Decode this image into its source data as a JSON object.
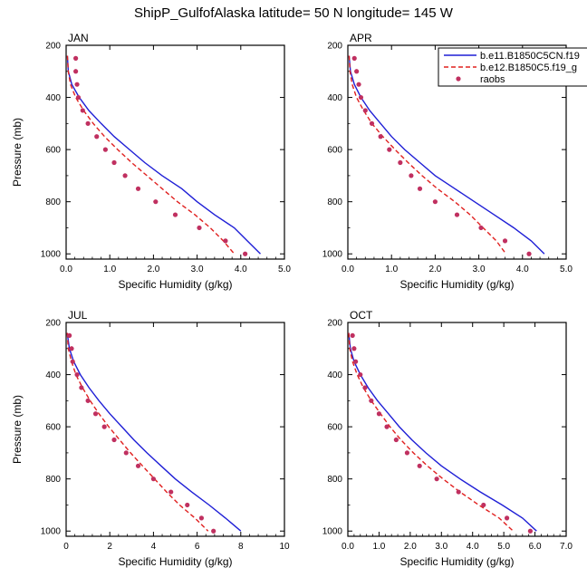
{
  "title": "ShipP_GulfofAlaska  latitude= 50 N longitude= 145 W",
  "legend": {
    "entries": [
      {
        "label": "b.e11.B1850C5CN.f19",
        "color": "#1f1fd6",
        "style": "solid"
      },
      {
        "label": "b.e12.B1850C5.f19_g",
        "color": "#e0201f",
        "style": "dashed"
      },
      {
        "label": "raobs",
        "color": "#c03060",
        "style": "markers"
      }
    ]
  },
  "chart_data": [
    {
      "type": "line",
      "panel_label": "JAN",
      "xlabel": "Specific Humidity (g/kg)",
      "ylabel": "Pressure (mb)",
      "xlim": [
        0,
        5
      ],
      "ylim": [
        200,
        1020
      ],
      "xticks": [
        "0.0",
        "1.0",
        "2.0",
        "3.0",
        "4.0",
        "5.0"
      ],
      "yticks": [
        "200",
        "400",
        "600",
        "800",
        "1000"
      ],
      "series": [
        {
          "name": "b.e11.B1850C5CN.f19",
          "points": [
            [
              0.03,
              240
            ],
            [
              0.05,
              300
            ],
            [
              0.13,
              350
            ],
            [
              0.3,
              400
            ],
            [
              0.52,
              450
            ],
            [
              0.8,
              500
            ],
            [
              1.1,
              550
            ],
            [
              1.45,
              600
            ],
            [
              1.8,
              650
            ],
            [
              2.2,
              700
            ],
            [
              2.65,
              750
            ],
            [
              3.0,
              800
            ],
            [
              3.4,
              850
            ],
            [
              3.85,
              900
            ],
            [
              4.15,
              950
            ],
            [
              4.45,
              1000
            ]
          ]
        },
        {
          "name": "b.e12.B1850C5.f19_g",
          "points": [
            [
              0.03,
              240
            ],
            [
              0.05,
              300
            ],
            [
              0.1,
              350
            ],
            [
              0.22,
              400
            ],
            [
              0.4,
              450
            ],
            [
              0.62,
              500
            ],
            [
              0.88,
              550
            ],
            [
              1.18,
              600
            ],
            [
              1.5,
              650
            ],
            [
              1.85,
              700
            ],
            [
              2.2,
              750
            ],
            [
              2.55,
              800
            ],
            [
              2.95,
              850
            ],
            [
              3.3,
              900
            ],
            [
              3.6,
              950
            ],
            [
              3.85,
              1000
            ]
          ]
        },
        {
          "name": "raobs",
          "points": [
            [
              0.22,
              250
            ],
            [
              0.22,
              300
            ],
            [
              0.25,
              350
            ],
            [
              0.28,
              400
            ],
            [
              0.38,
              450
            ],
            [
              0.5,
              500
            ],
            [
              0.7,
              550
            ],
            [
              0.9,
              600
            ],
            [
              1.1,
              650
            ],
            [
              1.35,
              700
            ],
            [
              1.65,
              750
            ],
            [
              2.05,
              800
            ],
            [
              2.5,
              850
            ],
            [
              3.05,
              900
            ],
            [
              3.65,
              950
            ],
            [
              4.1,
              1000
            ]
          ]
        }
      ]
    },
    {
      "type": "line",
      "panel_label": "APR",
      "xlabel": "Specific Humidity (g/kg)",
      "ylabel": "",
      "xlim": [
        0,
        5
      ],
      "ylim": [
        200,
        1020
      ],
      "xticks": [
        "0.0",
        "1.0",
        "2.0",
        "3.0",
        "4.0",
        "5.0"
      ],
      "yticks": [
        "200",
        "400",
        "600",
        "800",
        "1000"
      ],
      "series": [
        {
          "name": "b.e11.B1850C5CN.f19",
          "points": [
            [
              0.03,
              240
            ],
            [
              0.06,
              300
            ],
            [
              0.15,
              350
            ],
            [
              0.3,
              400
            ],
            [
              0.5,
              450
            ],
            [
              0.75,
              500
            ],
            [
              1.0,
              550
            ],
            [
              1.3,
              600
            ],
            [
              1.65,
              650
            ],
            [
              2.0,
              700
            ],
            [
              2.45,
              750
            ],
            [
              2.9,
              800
            ],
            [
              3.35,
              850
            ],
            [
              3.8,
              900
            ],
            [
              4.2,
              950
            ],
            [
              4.5,
              1000
            ]
          ]
        },
        {
          "name": "b.e12.B1850C5.f19_g",
          "points": [
            [
              0.03,
              240
            ],
            [
              0.05,
              300
            ],
            [
              0.1,
              350
            ],
            [
              0.2,
              400
            ],
            [
              0.36,
              450
            ],
            [
              0.55,
              500
            ],
            [
              0.8,
              550
            ],
            [
              1.08,
              600
            ],
            [
              1.38,
              650
            ],
            [
              1.7,
              700
            ],
            [
              2.05,
              750
            ],
            [
              2.45,
              800
            ],
            [
              2.8,
              850
            ],
            [
              3.1,
              900
            ],
            [
              3.4,
              950
            ],
            [
              3.62,
              1000
            ]
          ]
        },
        {
          "name": "raobs",
          "points": [
            [
              0.15,
              250
            ],
            [
              0.2,
              300
            ],
            [
              0.25,
              350
            ],
            [
              0.3,
              400
            ],
            [
              0.4,
              450
            ],
            [
              0.55,
              500
            ],
            [
              0.75,
              550
            ],
            [
              0.95,
              600
            ],
            [
              1.2,
              650
            ],
            [
              1.45,
              700
            ],
            [
              1.65,
              750
            ],
            [
              2.0,
              800
            ],
            [
              2.5,
              850
            ],
            [
              3.05,
              900
            ],
            [
              3.6,
              950
            ],
            [
              4.15,
              1000
            ]
          ]
        }
      ]
    },
    {
      "type": "line",
      "panel_label": "JUL",
      "xlabel": "Specific Humidity (g/kg)",
      "ylabel": "Pressure (mb)",
      "xlim": [
        0,
        10
      ],
      "ylim": [
        200,
        1020
      ],
      "xticks": [
        "0",
        "2",
        "4",
        "6",
        "8",
        "10"
      ],
      "yticks": [
        "200",
        "400",
        "600",
        "800",
        "1000"
      ],
      "series": [
        {
          "name": "b.e11.B1850C5CN.f19",
          "points": [
            [
              0.05,
              240
            ],
            [
              0.15,
              300
            ],
            [
              0.35,
              350
            ],
            [
              0.65,
              400
            ],
            [
              1.05,
              450
            ],
            [
              1.5,
              500
            ],
            [
              2.0,
              550
            ],
            [
              2.55,
              600
            ],
            [
              3.1,
              650
            ],
            [
              3.7,
              700
            ],
            [
              4.35,
              750
            ],
            [
              5.0,
              800
            ],
            [
              5.75,
              850
            ],
            [
              6.55,
              900
            ],
            [
              7.3,
              950
            ],
            [
              8.0,
              1000
            ]
          ]
        },
        {
          "name": "b.e12.B1850C5.f19_g",
          "points": [
            [
              0.05,
              240
            ],
            [
              0.1,
              300
            ],
            [
              0.25,
              350
            ],
            [
              0.45,
              400
            ],
            [
              0.75,
              450
            ],
            [
              1.1,
              500
            ],
            [
              1.5,
              550
            ],
            [
              1.95,
              600
            ],
            [
              2.45,
              650
            ],
            [
              2.95,
              700
            ],
            [
              3.5,
              750
            ],
            [
              4.05,
              800
            ],
            [
              4.6,
              850
            ],
            [
              5.2,
              900
            ],
            [
              5.9,
              950
            ],
            [
              6.5,
              1000
            ]
          ]
        },
        {
          "name": "raobs",
          "points": [
            [
              0.15,
              250
            ],
            [
              0.25,
              300
            ],
            [
              0.3,
              350
            ],
            [
              0.5,
              400
            ],
            [
              0.7,
              450
            ],
            [
              1.0,
              500
            ],
            [
              1.35,
              550
            ],
            [
              1.75,
              600
            ],
            [
              2.2,
              650
            ],
            [
              2.75,
              700
            ],
            [
              3.3,
              750
            ],
            [
              4.0,
              800
            ],
            [
              4.8,
              850
            ],
            [
              5.55,
              900
            ],
            [
              6.2,
              950
            ],
            [
              6.75,
              1000
            ]
          ]
        }
      ]
    },
    {
      "type": "line",
      "panel_label": "OCT",
      "xlabel": "Specific Humidity (g/kg)",
      "ylabel": "",
      "xlim": [
        0,
        7
      ],
      "ylim": [
        200,
        1020
      ],
      "xticks": [
        "0.0",
        "1.0",
        "2.0",
        "3.0",
        "4.0",
        "5.0",
        "6.0",
        "7.0"
      ],
      "yticks": [
        "200",
        "400",
        "600",
        "800",
        "1000"
      ],
      "series": [
        {
          "name": "b.e11.B1850C5CN.f19",
          "points": [
            [
              0.03,
              240
            ],
            [
              0.08,
              300
            ],
            [
              0.2,
              350
            ],
            [
              0.4,
              400
            ],
            [
              0.65,
              450
            ],
            [
              0.95,
              500
            ],
            [
              1.3,
              550
            ],
            [
              1.65,
              600
            ],
            [
              2.05,
              650
            ],
            [
              2.5,
              700
            ],
            [
              3.0,
              750
            ],
            [
              3.6,
              800
            ],
            [
              4.25,
              850
            ],
            [
              4.95,
              900
            ],
            [
              5.6,
              950
            ],
            [
              6.05,
              1000
            ]
          ]
        },
        {
          "name": "b.e12.B1850C5.f19_g",
          "points": [
            [
              0.03,
              240
            ],
            [
              0.06,
              300
            ],
            [
              0.15,
              350
            ],
            [
              0.3,
              400
            ],
            [
              0.5,
              450
            ],
            [
              0.75,
              500
            ],
            [
              1.05,
              550
            ],
            [
              1.35,
              600
            ],
            [
              1.7,
              650
            ],
            [
              2.1,
              700
            ],
            [
              2.55,
              750
            ],
            [
              3.05,
              800
            ],
            [
              3.6,
              850
            ],
            [
              4.2,
              900
            ],
            [
              4.85,
              950
            ],
            [
              5.3,
              1000
            ]
          ]
        },
        {
          "name": "raobs",
          "points": [
            [
              0.15,
              250
            ],
            [
              0.2,
              300
            ],
            [
              0.25,
              350
            ],
            [
              0.4,
              400
            ],
            [
              0.55,
              450
            ],
            [
              0.75,
              500
            ],
            [
              1.0,
              550
            ],
            [
              1.25,
              600
            ],
            [
              1.55,
              650
            ],
            [
              1.9,
              700
            ],
            [
              2.3,
              750
            ],
            [
              2.85,
              800
            ],
            [
              3.55,
              850
            ],
            [
              4.35,
              900
            ],
            [
              5.1,
              950
            ],
            [
              5.85,
              1000
            ]
          ]
        }
      ]
    }
  ]
}
